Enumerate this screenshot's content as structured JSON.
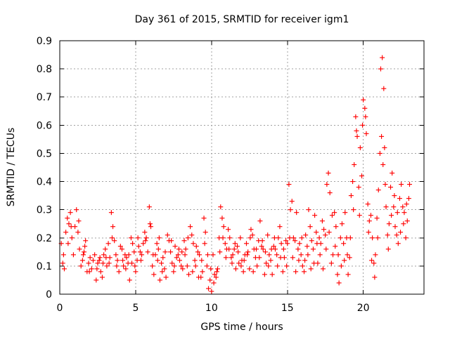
{
  "chart_data": {
    "type": "scatter",
    "title": "Day 361 of 2015, SRMTID for receiver igm1",
    "xlabel": "GPS time / hours",
    "ylabel": "SRMTID / TECUs",
    "xlim": [
      0,
      24
    ],
    "ylim": [
      0,
      0.9
    ],
    "x_ticks": [
      0,
      5,
      10,
      15,
      20
    ],
    "x_tick_labels": [
      "0",
      "5",
      "10",
      "15",
      "20"
    ],
    "y_ticks": [
      0,
      0.1,
      0.2,
      0.3,
      0.4,
      0.5,
      0.6,
      0.7,
      0.8,
      0.9
    ],
    "y_tick_labels": [
      "0",
      "0.1",
      "0.2",
      "0.3",
      "0.4",
      "0.5",
      "0.6",
      "0.7",
      "0.8",
      "0.9"
    ],
    "grid": true,
    "marker": "+",
    "color": "#ff0000",
    "points": [
      [
        0.1,
        0.18
      ],
      [
        0.2,
        0.11
      ],
      [
        0.3,
        0.09
      ],
      [
        0.4,
        0.22
      ],
      [
        0.5,
        0.27
      ],
      [
        0.6,
        0.25
      ],
      [
        0.7,
        0.29
      ],
      [
        0.8,
        0.2
      ],
      [
        0.9,
        0.14
      ],
      [
        1.0,
        0.24
      ],
      [
        1.1,
        0.3
      ],
      [
        1.2,
        0.22
      ],
      [
        1.3,
        0.16
      ],
      [
        1.4,
        0.1
      ],
      [
        1.5,
        0.12
      ],
      [
        1.6,
        0.15
      ],
      [
        1.7,
        0.19
      ],
      [
        1.8,
        0.08
      ],
      [
        1.9,
        0.11
      ],
      [
        2.0,
        0.13
      ],
      [
        2.1,
        0.09
      ],
      [
        2.2,
        0.12
      ],
      [
        2.3,
        0.14
      ],
      [
        2.4,
        0.05
      ],
      [
        2.5,
        0.11
      ],
      [
        2.6,
        0.12
      ],
      [
        2.7,
        0.08
      ],
      [
        2.8,
        0.06
      ],
      [
        2.9,
        0.14
      ],
      [
        3.0,
        0.16
      ],
      [
        3.1,
        0.1
      ],
      [
        3.2,
        0.18
      ],
      [
        3.3,
        0.13
      ],
      [
        3.4,
        0.29
      ],
      [
        3.5,
        0.24
      ],
      [
        3.6,
        0.19
      ],
      [
        3.7,
        0.14
      ],
      [
        3.8,
        0.12
      ],
      [
        3.9,
        0.08
      ],
      [
        4.0,
        0.17
      ],
      [
        4.1,
        0.16
      ],
      [
        4.2,
        0.1
      ],
      [
        4.3,
        0.14
      ],
      [
        4.4,
        0.13
      ],
      [
        4.5,
        0.11
      ],
      [
        4.6,
        0.05
      ],
      [
        4.7,
        0.2
      ],
      [
        4.8,
        0.18
      ],
      [
        4.9,
        0.15
      ],
      [
        5.0,
        0.08
      ],
      [
        5.1,
        0.12
      ],
      [
        5.2,
        0.17
      ],
      [
        5.3,
        0.15
      ],
      [
        5.4,
        0.14
      ],
      [
        5.5,
        0.18
      ],
      [
        5.6,
        0.22
      ],
      [
        5.7,
        0.2
      ],
      [
        5.8,
        0.15
      ],
      [
        5.9,
        0.31
      ],
      [
        6.0,
        0.24
      ],
      [
        6.1,
        0.1
      ],
      [
        6.2,
        0.07
      ],
      [
        6.3,
        0.14
      ],
      [
        6.4,
        0.18
      ],
      [
        6.5,
        0.16
      ],
      [
        6.6,
        0.05
      ],
      [
        6.7,
        0.11
      ],
      [
        6.8,
        0.13
      ],
      [
        6.9,
        0.09
      ],
      [
        7.0,
        0.06
      ],
      [
        7.1,
        0.21
      ],
      [
        7.2,
        0.19
      ],
      [
        7.3,
        0.15
      ],
      [
        7.4,
        0.11
      ],
      [
        7.5,
        0.08
      ],
      [
        7.6,
        0.17
      ],
      [
        7.7,
        0.13
      ],
      [
        7.8,
        0.14
      ],
      [
        7.9,
        0.12
      ],
      [
        8.0,
        0.1
      ],
      [
        8.1,
        0.09
      ],
      [
        8.2,
        0.19
      ],
      [
        8.3,
        0.16
      ],
      [
        8.4,
        0.1
      ],
      [
        8.5,
        0.07
      ],
      [
        8.6,
        0.24
      ],
      [
        8.7,
        0.21
      ],
      [
        8.8,
        0.18
      ],
      [
        8.9,
        0.12
      ],
      [
        9.0,
        0.17
      ],
      [
        9.1,
        0.15
      ],
      [
        9.2,
        0.14
      ],
      [
        9.3,
        0.06
      ],
      [
        9.4,
        0.08
      ],
      [
        9.5,
        0.27
      ],
      [
        9.6,
        0.22
      ],
      [
        9.7,
        0.1
      ],
      [
        9.8,
        0.02
      ],
      [
        9.9,
        0.05
      ],
      [
        10.0,
        0.01
      ],
      [
        10.1,
        0.14
      ],
      [
        10.2,
        0.07
      ],
      [
        10.3,
        0.06
      ],
      [
        10.4,
        0.09
      ],
      [
        10.5,
        0.2
      ],
      [
        10.6,
        0.31
      ],
      [
        10.7,
        0.27
      ],
      [
        10.8,
        0.24
      ],
      [
        10.9,
        0.18
      ],
      [
        11.0,
        0.16
      ],
      [
        11.1,
        0.23
      ],
      [
        11.2,
        0.2
      ],
      [
        11.3,
        0.13
      ],
      [
        11.4,
        0.14
      ],
      [
        11.5,
        0.16
      ],
      [
        11.6,
        0.09
      ],
      [
        11.7,
        0.17
      ],
      [
        11.8,
        0.11
      ],
      [
        11.9,
        0.2
      ],
      [
        12.0,
        0.12
      ],
      [
        12.1,
        0.08
      ],
      [
        12.2,
        0.14
      ],
      [
        12.3,
        0.18
      ],
      [
        12.4,
        0.15
      ],
      [
        12.5,
        0.09
      ],
      [
        12.6,
        0.23
      ],
      [
        12.7,
        0.21
      ],
      [
        12.8,
        0.16
      ],
      [
        12.9,
        0.13
      ],
      [
        13.0,
        0.1
      ],
      [
        13.1,
        0.19
      ],
      [
        13.2,
        0.26
      ],
      [
        13.3,
        0.17
      ],
      [
        13.4,
        0.16
      ],
      [
        13.5,
        0.07
      ],
      [
        13.6,
        0.11
      ],
      [
        13.7,
        0.21
      ],
      [
        13.8,
        0.14
      ],
      [
        13.9,
        0.12
      ],
      [
        14.0,
        0.07
      ],
      [
        14.1,
        0.17
      ],
      [
        14.2,
        0.16
      ],
      [
        14.3,
        0.14
      ],
      [
        14.4,
        0.2
      ],
      [
        14.5,
        0.24
      ],
      [
        14.6,
        0.18
      ],
      [
        14.7,
        0.08
      ],
      [
        14.8,
        0.13
      ],
      [
        14.9,
        0.19
      ],
      [
        15.0,
        0.18
      ],
      [
        15.1,
        0.39
      ],
      [
        15.2,
        0.3
      ],
      [
        15.3,
        0.33
      ],
      [
        15.4,
        0.2
      ],
      [
        15.5,
        0.19
      ],
      [
        15.6,
        0.29
      ],
      [
        15.7,
        0.16
      ],
      [
        15.8,
        0.18
      ],
      [
        15.9,
        0.14
      ],
      [
        16.0,
        0.1
      ],
      [
        16.1,
        0.08
      ],
      [
        16.2,
        0.21
      ],
      [
        16.3,
        0.17
      ],
      [
        16.4,
        0.3
      ],
      [
        16.5,
        0.24
      ],
      [
        16.6,
        0.19
      ],
      [
        16.7,
        0.16
      ],
      [
        16.8,
        0.28
      ],
      [
        16.9,
        0.22
      ],
      [
        17.0,
        0.11
      ],
      [
        17.1,
        0.2
      ],
      [
        17.2,
        0.18
      ],
      [
        17.3,
        0.26
      ],
      [
        17.4,
        0.23
      ],
      [
        17.5,
        0.21
      ],
      [
        17.6,
        0.39
      ],
      [
        17.7,
        0.43
      ],
      [
        17.8,
        0.36
      ],
      [
        17.9,
        0.11
      ],
      [
        18.0,
        0.14
      ],
      [
        18.1,
        0.29
      ],
      [
        18.2,
        0.24
      ],
      [
        18.3,
        0.07
      ],
      [
        18.4,
        0.04
      ],
      [
        18.5,
        0.2
      ],
      [
        18.6,
        0.25
      ],
      [
        18.7,
        0.18
      ],
      [
        18.8,
        0.29
      ],
      [
        18.9,
        0.2
      ],
      [
        19.0,
        0.07
      ],
      [
        19.1,
        0.13
      ],
      [
        19.2,
        0.35
      ],
      [
        19.3,
        0.4
      ],
      [
        19.4,
        0.46
      ],
      [
        19.5,
        0.63
      ],
      [
        19.6,
        0.56
      ],
      [
        19.7,
        0.38
      ],
      [
        19.8,
        0.52
      ],
      [
        19.9,
        0.42
      ],
      [
        20.0,
        0.69
      ],
      [
        20.1,
        0.66
      ],
      [
        20.2,
        0.57
      ],
      [
        20.3,
        0.32
      ],
      [
        20.4,
        0.26
      ],
      [
        20.5,
        0.28
      ],
      [
        20.6,
        0.2
      ],
      [
        20.7,
        0.11
      ],
      [
        20.8,
        0.14
      ],
      [
        20.9,
        0.27
      ],
      [
        21.0,
        0.37
      ],
      [
        21.1,
        0.5
      ],
      [
        21.2,
        0.56
      ],
      [
        21.3,
        0.46
      ],
      [
        21.4,
        0.52
      ],
      [
        21.5,
        0.31
      ],
      [
        21.6,
        0.21
      ],
      [
        21.7,
        0.25
      ],
      [
        21.8,
        0.38
      ],
      [
        21.9,
        0.43
      ],
      [
        22.0,
        0.31
      ],
      [
        22.1,
        0.24
      ],
      [
        22.2,
        0.21
      ],
      [
        22.3,
        0.18
      ],
      [
        22.4,
        0.34
      ],
      [
        22.5,
        0.39
      ],
      [
        22.6,
        0.31
      ],
      [
        22.7,
        0.29
      ],
      [
        22.8,
        0.2
      ],
      [
        22.9,
        0.26
      ],
      [
        23.0,
        0.34
      ],
      [
        0.25,
        0.14
      ],
      [
        0.55,
        0.18
      ],
      [
        0.75,
        0.24
      ],
      [
        1.25,
        0.26
      ],
      [
        1.55,
        0.14
      ],
      [
        1.65,
        0.17
      ],
      [
        1.95,
        0.08
      ],
      [
        2.45,
        0.09
      ],
      [
        2.65,
        0.13
      ],
      [
        2.85,
        0.11
      ],
      [
        3.05,
        0.13
      ],
      [
        3.25,
        0.11
      ],
      [
        3.45,
        0.2
      ],
      [
        3.75,
        0.1
      ],
      [
        4.15,
        0.12
      ],
      [
        4.35,
        0.09
      ],
      [
        4.55,
        0.14
      ],
      [
        4.75,
        0.11
      ],
      [
        4.95,
        0.1
      ],
      [
        5.15,
        0.2
      ],
      [
        5.35,
        0.12
      ],
      [
        5.65,
        0.19
      ],
      [
        5.95,
        0.25
      ],
      [
        6.15,
        0.14
      ],
      [
        6.45,
        0.12
      ],
      [
        6.55,
        0.2
      ],
      [
        6.75,
        0.08
      ],
      [
        6.95,
        0.15
      ],
      [
        7.35,
        0.19
      ],
      [
        7.55,
        0.1
      ],
      [
        7.85,
        0.16
      ],
      [
        8.05,
        0.15
      ],
      [
        8.25,
        0.14
      ],
      [
        8.45,
        0.2
      ],
      [
        8.75,
        0.08
      ],
      [
        8.95,
        0.1
      ],
      [
        9.15,
        0.06
      ],
      [
        9.35,
        0.12
      ],
      [
        9.55,
        0.18
      ],
      [
        9.75,
        0.14
      ],
      [
        9.95,
        0.09
      ],
      [
        10.15,
        0.04
      ],
      [
        10.35,
        0.08
      ],
      [
        10.55,
        0.15
      ],
      [
        10.75,
        0.2
      ],
      [
        10.95,
        0.13
      ],
      [
        11.15,
        0.16
      ],
      [
        11.35,
        0.11
      ],
      [
        11.55,
        0.18
      ],
      [
        11.75,
        0.15
      ],
      [
        11.95,
        0.1
      ],
      [
        12.15,
        0.12
      ],
      [
        12.35,
        0.14
      ],
      [
        12.55,
        0.2
      ],
      [
        12.75,
        0.08
      ],
      [
        12.95,
        0.16
      ],
      [
        13.15,
        0.13
      ],
      [
        13.35,
        0.19
      ],
      [
        13.55,
        0.15
      ],
      [
        13.75,
        0.1
      ],
      [
        13.95,
        0.16
      ],
      [
        14.15,
        0.2
      ],
      [
        14.35,
        0.1
      ],
      [
        14.55,
        0.13
      ],
      [
        14.75,
        0.16
      ],
      [
        14.95,
        0.1
      ],
      [
        15.15,
        0.2
      ],
      [
        15.35,
        0.13
      ],
      [
        15.55,
        0.08
      ],
      [
        15.75,
        0.12
      ],
      [
        15.95,
        0.2
      ],
      [
        16.15,
        0.12
      ],
      [
        16.35,
        0.14
      ],
      [
        16.55,
        0.09
      ],
      [
        16.75,
        0.11
      ],
      [
        16.95,
        0.18
      ],
      [
        17.15,
        0.14
      ],
      [
        17.35,
        0.09
      ],
      [
        17.55,
        0.16
      ],
      [
        17.75,
        0.22
      ],
      [
        17.95,
        0.28
      ],
      [
        18.15,
        0.17
      ],
      [
        18.35,
        0.14
      ],
      [
        18.55,
        0.1
      ],
      [
        18.75,
        0.12
      ],
      [
        18.95,
        0.14
      ],
      [
        19.15,
        0.2
      ],
      [
        19.35,
        0.3
      ],
      [
        19.55,
        0.58
      ],
      [
        19.75,
        0.28
      ],
      [
        19.95,
        0.6
      ],
      [
        20.15,
        0.63
      ],
      [
        20.35,
        0.22
      ],
      [
        20.55,
        0.12
      ],
      [
        20.75,
        0.06
      ],
      [
        20.95,
        0.2
      ],
      [
        21.15,
        0.8
      ],
      [
        21.25,
        0.84
      ],
      [
        21.35,
        0.73
      ],
      [
        21.45,
        0.39
      ],
      [
        21.65,
        0.16
      ],
      [
        21.85,
        0.28
      ],
      [
        22.05,
        0.35
      ],
      [
        22.25,
        0.29
      ],
      [
        22.45,
        0.22
      ],
      [
        22.65,
        0.25
      ],
      [
        22.85,
        0.32
      ],
      [
        23.05,
        0.39
      ]
    ]
  }
}
